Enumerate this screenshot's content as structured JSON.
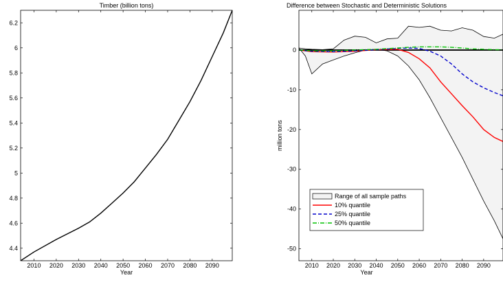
{
  "chart_data": [
    {
      "type": "line",
      "title": "Timber (billion tons)",
      "xlabel": "Year",
      "ylabel": "",
      "xlim": [
        2004,
        2099
      ],
      "ylim": [
        4.3,
        6.3
      ],
      "xticks": [
        2010,
        2020,
        2030,
        2040,
        2050,
        2060,
        2070,
        2080,
        2090
      ],
      "yticks": [
        "4.4",
        "4.6",
        "4.8",
        "5",
        "5.2",
        "5.4",
        "5.6",
        "5.8",
        "6",
        "6.2"
      ],
      "series": [
        {
          "color": "#000000",
          "x": [
            2004,
            2010,
            2020,
            2030,
            2035,
            2040,
            2045,
            2050,
            2055,
            2060,
            2065,
            2070,
            2075,
            2080,
            2085,
            2090,
            2095,
            2099
          ],
          "y": [
            4.3,
            4.37,
            4.47,
            4.56,
            4.61,
            4.68,
            4.76,
            4.84,
            4.93,
            5.04,
            5.15,
            5.27,
            5.42,
            5.57,
            5.74,
            5.93,
            6.12,
            6.3
          ]
        }
      ]
    },
    {
      "type": "line",
      "title": "Difference between Stochastic and Deterministic Solutions",
      "xlabel": "Year",
      "ylabel": "million tons",
      "xlim": [
        2004,
        2099
      ],
      "ylim": [
        -53,
        10
      ],
      "xticks": [
        2010,
        2020,
        2030,
        2040,
        2050,
        2060,
        2070,
        2080,
        2090
      ],
      "yticks": [
        "0",
        "-10",
        "-20",
        "-30",
        "-40",
        "-50"
      ],
      "grid": false,
      "legend_position": "lower-left",
      "range": {
        "name": "Range of all sample paths",
        "fill": "#f3f3f3",
        "x": [
          2004,
          2007,
          2010,
          2015,
          2020,
          2025,
          2030,
          2035,
          2040,
          2045,
          2050,
          2055,
          2060,
          2065,
          2070,
          2075,
          2080,
          2085,
          2090,
          2095,
          2099
        ],
        "upper": [
          0.5,
          0.3,
          0.2,
          0.1,
          0.3,
          2.5,
          3.5,
          3.2,
          1.8,
          2.8,
          3.0,
          6.0,
          5.7,
          6.0,
          5.0,
          4.8,
          5.6,
          5.0,
          3.4,
          3.0,
          4.0
        ],
        "lower": [
          0.5,
          -1.5,
          -6.0,
          -3.5,
          -2.5,
          -1.5,
          -0.7,
          0.0,
          0.2,
          -0.2,
          -1.5,
          -4.0,
          -7.5,
          -12.0,
          -17.0,
          -22.0,
          -27.0,
          -32.5,
          -38.0,
          -43.0,
          -47.5
        ]
      },
      "series": [
        {
          "name": "10% quantile",
          "color": "#ff0000",
          "dash": "",
          "x": [
            2004,
            2010,
            2020,
            2030,
            2040,
            2050,
            2055,
            2060,
            2065,
            2070,
            2075,
            2080,
            2085,
            2090,
            2095,
            2099
          ],
          "y": [
            0,
            -0.4,
            -0.5,
            -0.3,
            0.1,
            0.2,
            -0.6,
            -2.2,
            -4.5,
            -8.0,
            -11.0,
            -14.0,
            -16.8,
            -20.0,
            -22.0,
            -23.0
          ]
        },
        {
          "name": "25% quantile",
          "color": "#0000cc",
          "dash": "5,3",
          "x": [
            2004,
            2010,
            2020,
            2030,
            2040,
            2050,
            2055,
            2060,
            2065,
            2070,
            2075,
            2080,
            2085,
            2090,
            2095,
            2099
          ],
          "y": [
            0,
            -0.3,
            -0.4,
            -0.2,
            0.1,
            0.4,
            0.5,
            0.4,
            -0.3,
            -1.5,
            -3.5,
            -6.0,
            -8.0,
            -9.5,
            -10.7,
            -11.5
          ]
        },
        {
          "name": "50% quantile",
          "color": "#00c000",
          "dash": "6,2,1,2",
          "x": [
            2004,
            2010,
            2020,
            2030,
            2040,
            2050,
            2055,
            2060,
            2065,
            2070,
            2075,
            2080,
            2085,
            2090,
            2095,
            2099
          ],
          "y": [
            0,
            -0.2,
            -0.2,
            0,
            0.2,
            0.5,
            0.7,
            0.8,
            0.8,
            0.8,
            0.7,
            0.5,
            0.3,
            0.2,
            0.1,
            0.1
          ]
        }
      ],
      "zero_line": {
        "color": "#000000",
        "y": 0
      }
    }
  ]
}
